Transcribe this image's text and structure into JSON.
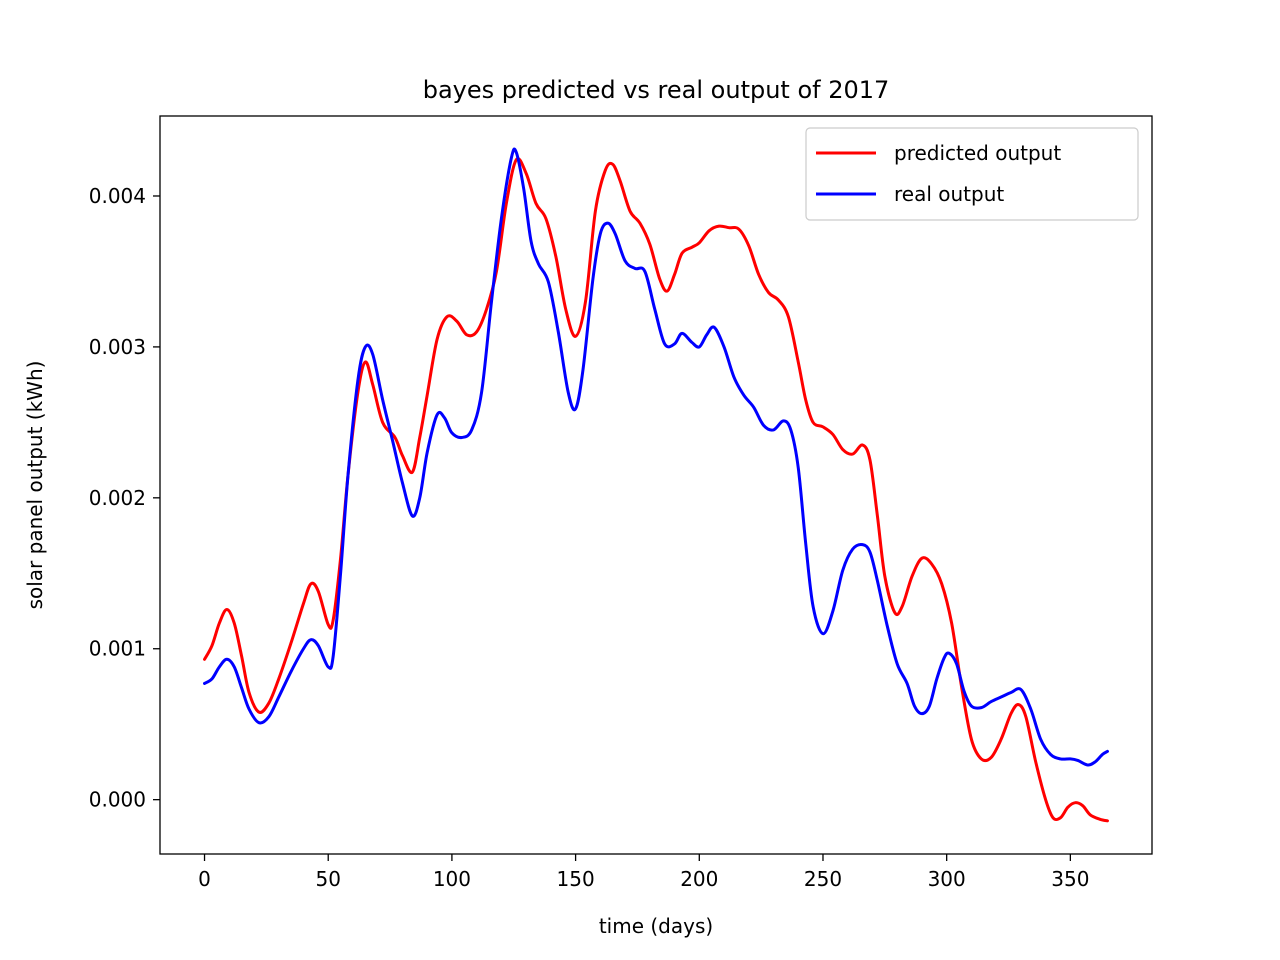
{
  "chart_data": {
    "type": "line",
    "title": "bayes predicted vs real output of 2017",
    "xlabel": "time (days)",
    "ylabel": "solar panel output (kWh)",
    "xlim": [
      -18,
      383
    ],
    "ylim": [
      -0.00036,
      0.00453
    ],
    "xticks": [
      0,
      50,
      100,
      150,
      200,
      250,
      300,
      350
    ],
    "xtick_labels": [
      "0",
      "50",
      "100",
      "150",
      "200",
      "250",
      "300",
      "350"
    ],
    "yticks": [
      0.0,
      0.001,
      0.002,
      0.003,
      0.004
    ],
    "ytick_labels": [
      "0.000",
      "0.001",
      "0.002",
      "0.003",
      "0.004"
    ],
    "grid": false,
    "legend_position": "upper right",
    "series": [
      {
        "name": "predicted output",
        "color": "#ff0000",
        "points": [
          [
            0,
            0.00093
          ],
          [
            3,
            0.00102
          ],
          [
            6,
            0.00117
          ],
          [
            9,
            0.00126
          ],
          [
            12,
            0.00117
          ],
          [
            15,
            0.00095
          ],
          [
            18,
            0.00071
          ],
          [
            22,
            0.00058
          ],
          [
            26,
            0.00064
          ],
          [
            30,
            0.0008
          ],
          [
            35,
            0.00104
          ],
          [
            40,
            0.0013
          ],
          [
            43,
            0.00143
          ],
          [
            46,
            0.00138
          ],
          [
            50,
            0.00116
          ],
          [
            52,
            0.00119
          ],
          [
            55,
            0.0016
          ],
          [
            58,
            0.00215
          ],
          [
            62,
            0.0027
          ],
          [
            65,
            0.0029
          ],
          [
            68,
            0.00275
          ],
          [
            72,
            0.0025
          ],
          [
            77,
            0.0024
          ],
          [
            80,
            0.00228
          ],
          [
            84,
            0.00217
          ],
          [
            87,
            0.0024
          ],
          [
            90,
            0.00268
          ],
          [
            94,
            0.00305
          ],
          [
            98,
            0.0032
          ],
          [
            102,
            0.00317
          ],
          [
            106,
            0.00308
          ],
          [
            110,
            0.0031
          ],
          [
            114,
            0.00325
          ],
          [
            118,
            0.0035
          ],
          [
            122,
            0.00395
          ],
          [
            126,
            0.00424
          ],
          [
            130,
            0.00415
          ],
          [
            134,
            0.00395
          ],
          [
            138,
            0.00385
          ],
          [
            142,
            0.0036
          ],
          [
            146,
            0.00325
          ],
          [
            150,
            0.00307
          ],
          [
            154,
            0.0033
          ],
          [
            158,
            0.0039
          ],
          [
            162,
            0.00417
          ],
          [
            165,
            0.00421
          ],
          [
            168,
            0.0041
          ],
          [
            172,
            0.0039
          ],
          [
            176,
            0.00382
          ],
          [
            180,
            0.00368
          ],
          [
            184,
            0.00345
          ],
          [
            187,
            0.00337
          ],
          [
            190,
            0.00348
          ],
          [
            193,
            0.00362
          ],
          [
            197,
            0.00366
          ],
          [
            200,
            0.00369
          ],
          [
            204,
            0.00377
          ],
          [
            208,
            0.0038
          ],
          [
            212,
            0.00379
          ],
          [
            216,
            0.00378
          ],
          [
            220,
            0.00367
          ],
          [
            224,
            0.00348
          ],
          [
            228,
            0.00336
          ],
          [
            232,
            0.00331
          ],
          [
            236,
            0.0032
          ],
          [
            240,
            0.0029
          ],
          [
            243,
            0.00265
          ],
          [
            246,
            0.0025
          ],
          [
            250,
            0.00247
          ],
          [
            254,
            0.00242
          ],
          [
            258,
            0.00232
          ],
          [
            262,
            0.00229
          ],
          [
            266,
            0.00235
          ],
          [
            269,
            0.00225
          ],
          [
            272,
            0.00188
          ],
          [
            275,
            0.00148
          ],
          [
            279,
            0.00124
          ],
          [
            282,
            0.00128
          ],
          [
            286,
            0.00148
          ],
          [
            290,
            0.0016
          ],
          [
            294,
            0.00156
          ],
          [
            298,
            0.00143
          ],
          [
            302,
            0.00117
          ],
          [
            306,
            0.00075
          ],
          [
            310,
            0.0004
          ],
          [
            314,
            0.00027
          ],
          [
            318,
            0.00028
          ],
          [
            322,
            0.0004
          ],
          [
            326,
            0.00057
          ],
          [
            329,
            0.00063
          ],
          [
            332,
            0.00055
          ],
          [
            336,
            0.00025
          ],
          [
            340,
            0.0
          ],
          [
            343,
            -0.00012
          ],
          [
            346,
            -0.00012
          ],
          [
            349,
            -5e-05
          ],
          [
            352,
            -2e-05
          ],
          [
            355,
            -4e-05
          ],
          [
            358,
            -0.0001
          ],
          [
            362,
            -0.00013
          ],
          [
            365,
            -0.00014
          ]
        ]
      },
      {
        "name": "real output",
        "color": "#0000ff",
        "points": [
          [
            0,
            0.00077
          ],
          [
            3,
            0.0008
          ],
          [
            6,
            0.00088
          ],
          [
            9,
            0.00093
          ],
          [
            12,
            0.00088
          ],
          [
            15,
            0.00074
          ],
          [
            18,
            0.0006
          ],
          [
            22,
            0.00051
          ],
          [
            26,
            0.00055
          ],
          [
            30,
            0.00068
          ],
          [
            35,
            0.00085
          ],
          [
            40,
            0.001
          ],
          [
            43,
            0.00106
          ],
          [
            46,
            0.00102
          ],
          [
            50,
            0.00088
          ],
          [
            52,
            0.00095
          ],
          [
            55,
            0.0015
          ],
          [
            58,
            0.00215
          ],
          [
            62,
            0.00278
          ],
          [
            65,
            0.003
          ],
          [
            68,
            0.00295
          ],
          [
            72,
            0.00265
          ],
          [
            76,
            0.00238
          ],
          [
            80,
            0.0021
          ],
          [
            84,
            0.00188
          ],
          [
            87,
            0.002
          ],
          [
            90,
            0.0023
          ],
          [
            94,
            0.00255
          ],
          [
            97,
            0.00253
          ],
          [
            100,
            0.00243
          ],
          [
            104,
            0.0024
          ],
          [
            108,
            0.00245
          ],
          [
            112,
            0.0027
          ],
          [
            116,
            0.0033
          ],
          [
            120,
            0.00385
          ],
          [
            124,
            0.00425
          ],
          [
            126,
            0.00429
          ],
          [
            129,
            0.00405
          ],
          [
            132,
            0.0037
          ],
          [
            135,
            0.00355
          ],
          [
            139,
            0.00343
          ],
          [
            143,
            0.0031
          ],
          [
            147,
            0.0027
          ],
          [
            150,
            0.00259
          ],
          [
            153,
            0.00285
          ],
          [
            157,
            0.00345
          ],
          [
            160,
            0.00375
          ],
          [
            163,
            0.00382
          ],
          [
            166,
            0.00375
          ],
          [
            170,
            0.00357
          ],
          [
            174,
            0.00352
          ],
          [
            178,
            0.0035
          ],
          [
            182,
            0.00325
          ],
          [
            186,
            0.00302
          ],
          [
            190,
            0.00302
          ],
          [
            193,
            0.00309
          ],
          [
            197,
            0.00303
          ],
          [
            200,
            0.003
          ],
          [
            203,
            0.00308
          ],
          [
            206,
            0.00313
          ],
          [
            210,
            0.003
          ],
          [
            214,
            0.0028
          ],
          [
            218,
            0.00268
          ],
          [
            222,
            0.0026
          ],
          [
            226,
            0.00248
          ],
          [
            230,
            0.00245
          ],
          [
            234,
            0.00251
          ],
          [
            237,
            0.00245
          ],
          [
            240,
            0.0022
          ],
          [
            243,
            0.0017
          ],
          [
            246,
            0.00128
          ],
          [
            250,
            0.0011
          ],
          [
            254,
            0.00125
          ],
          [
            258,
            0.00152
          ],
          [
            262,
            0.00166
          ],
          [
            266,
            0.00169
          ],
          [
            269,
            0.00164
          ],
          [
            272,
            0.00145
          ],
          [
            276,
            0.00115
          ],
          [
            280,
            0.0009
          ],
          [
            284,
            0.00077
          ],
          [
            287,
            0.00062
          ],
          [
            290,
            0.00057
          ],
          [
            293,
            0.00062
          ],
          [
            296,
            0.0008
          ],
          [
            299,
            0.00094
          ],
          [
            301,
            0.00097
          ],
          [
            304,
            0.0009
          ],
          [
            307,
            0.00072
          ],
          [
            310,
            0.00062
          ],
          [
            314,
            0.00061
          ],
          [
            318,
            0.00065
          ],
          [
            322,
            0.00068
          ],
          [
            326,
            0.00071
          ],
          [
            330,
            0.00073
          ],
          [
            334,
            0.0006
          ],
          [
            338,
            0.0004
          ],
          [
            342,
            0.0003
          ],
          [
            346,
            0.00027
          ],
          [
            350,
            0.00027
          ],
          [
            353,
            0.00026
          ],
          [
            357,
            0.00023
          ],
          [
            360,
            0.00025
          ],
          [
            363,
            0.0003
          ],
          [
            365,
            0.00032
          ]
        ]
      }
    ]
  }
}
